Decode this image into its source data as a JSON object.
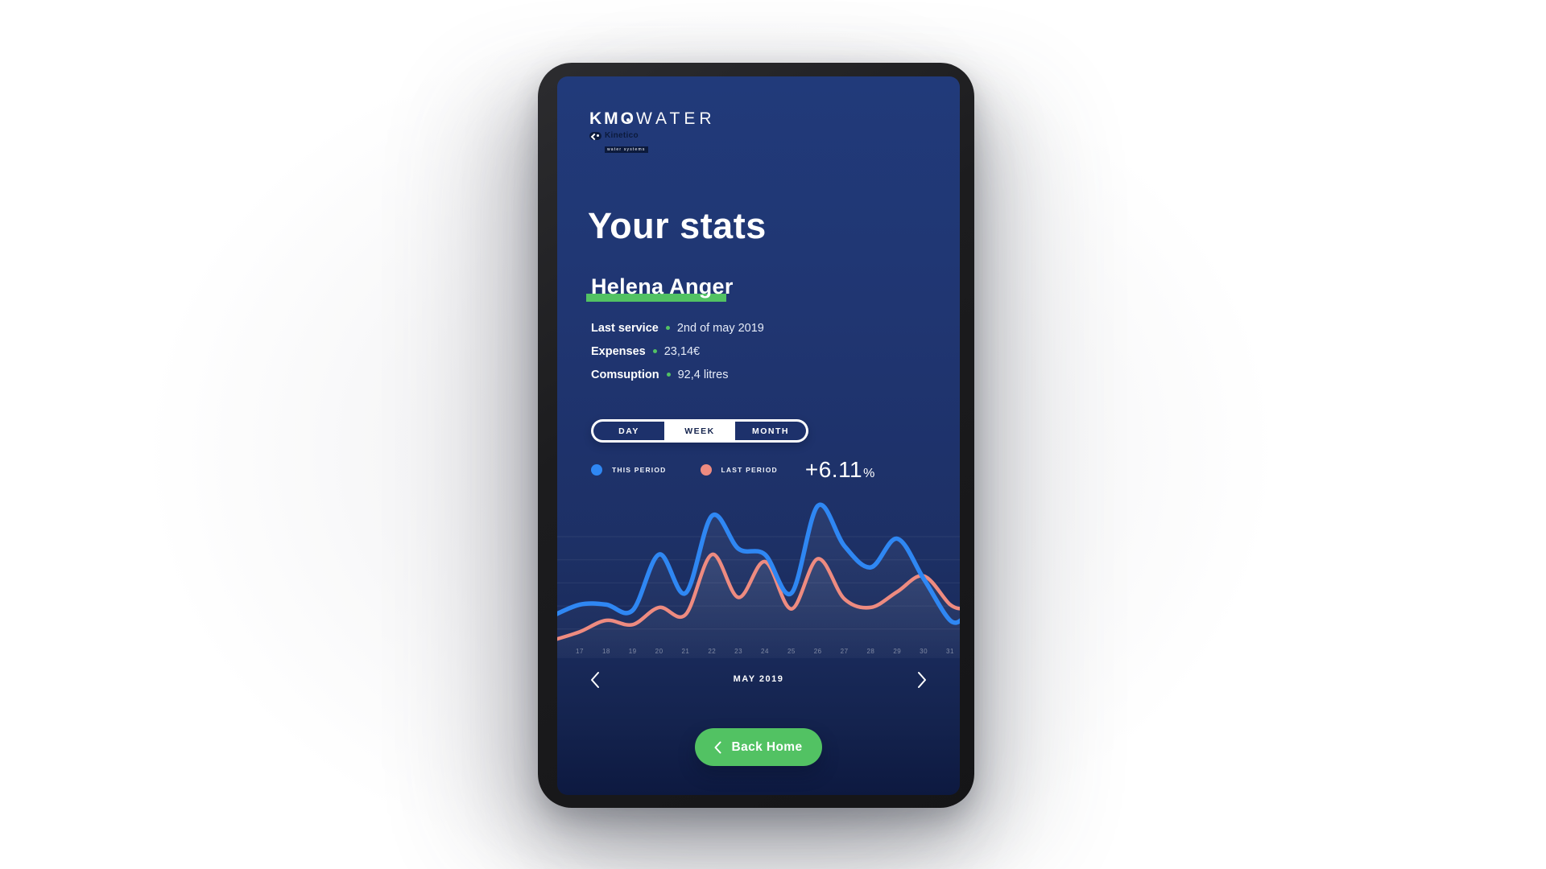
{
  "brand": {
    "km": "KM",
    "o": "O",
    "water": "WATER",
    "kinetico": "Kinetico",
    "kinetico_tag": "water systems"
  },
  "page": {
    "title": "Your stats"
  },
  "user": {
    "name": "Helena Anger"
  },
  "stats": {
    "rows": [
      {
        "label": "Last service",
        "value": "2nd of may 2019"
      },
      {
        "label": "Expenses",
        "value": "23,14€"
      },
      {
        "label": "Comsuption",
        "value": "92,4 litres"
      }
    ]
  },
  "period_selector": {
    "day": "DAY",
    "week": "WEEK",
    "month": "MONTH",
    "selected": "WEEK"
  },
  "legend": {
    "this_label": "THIS PERIOD",
    "last_label": "LAST PERIOD",
    "delta_value": "+6.11",
    "delta_unit": "%"
  },
  "month_nav": {
    "label": "MAY 2019"
  },
  "back_button": {
    "label": "Back Home"
  },
  "colors": {
    "accent_blue": "#2F87F3",
    "accent_salmon": "#EE8B80",
    "accent_green": "#52C263",
    "screen_top": "#213A7A",
    "screen_bottom": "#0D1940",
    "segment_dark": "#1D316B",
    "segment_text_dark": "#14234D"
  },
  "chart_data": {
    "type": "line",
    "title": "",
    "categories": [
      "17",
      "18",
      "19",
      "20",
      "21",
      "22",
      "23",
      "24",
      "25",
      "26",
      "27",
      "28",
      "29",
      "30",
      "31"
    ],
    "series": [
      {
        "name": "THIS PERIOD",
        "color": "#2F87F3",
        "values": [
          29,
          29,
          25,
          64,
          37,
          91,
          68,
          64,
          37,
          98,
          70,
          55,
          75,
          47,
          18
        ],
        "edge_start": 21,
        "edge_end": 20
      },
      {
        "name": "LAST PERIOD",
        "color": "#EE8B80",
        "values": [
          10,
          18,
          15,
          27,
          22,
          64,
          34,
          59,
          26,
          61,
          33,
          27,
          38,
          49,
          29
        ],
        "edge_start": 4,
        "edge_end": 26
      }
    ],
    "xlabel": "",
    "ylabel": "",
    "ylim": [
      0,
      100
    ],
    "grid": true,
    "legend_position": "above-chart"
  }
}
